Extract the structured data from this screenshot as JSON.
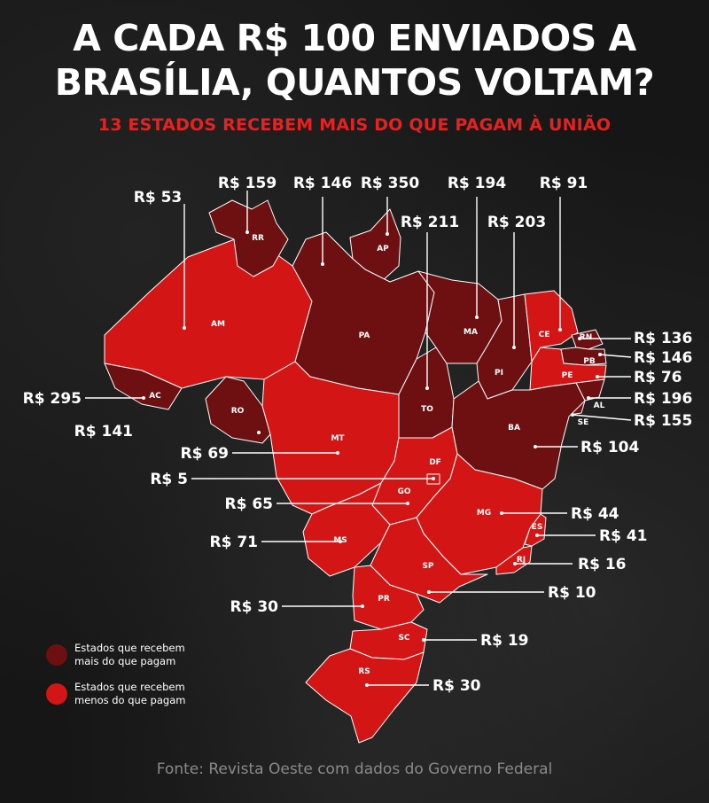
{
  "title_line1": "A CADA R$ 100 ENVIADOS A",
  "title_line2": "BRASÍLIA, QUANTOS VOLTAM?",
  "subtitle": "13 ESTADOS RECEBEM MAIS DO QUE PAGAM À UNIÃO",
  "colors": {
    "receive_more": "#6e0f12",
    "receive_less": "#d41515",
    "subtitle": "#e32222"
  },
  "legend": [
    {
      "key": "receive_more",
      "label_line1": "Estados que recebem",
      "label_line2": "mais do que pagam"
    },
    {
      "key": "receive_less",
      "label_line1": "Estados que recebem",
      "label_line2": "menos do que pagam"
    }
  ],
  "states": [
    {
      "code": "AM",
      "value": "R$ 53",
      "category": "receive_less"
    },
    {
      "code": "RR",
      "value": "R$ 159",
      "category": "receive_more"
    },
    {
      "code": "PA",
      "value": "R$ 146",
      "category": "receive_more"
    },
    {
      "code": "AP",
      "value": "R$ 350",
      "category": "receive_more"
    },
    {
      "code": "TO",
      "value": "R$ 211",
      "category": "receive_more"
    },
    {
      "code": "MA",
      "value": "R$ 194",
      "category": "receive_more"
    },
    {
      "code": "PI",
      "value": "R$ 203",
      "category": "receive_more"
    },
    {
      "code": "CE",
      "value": "R$ 91",
      "category": "receive_less"
    },
    {
      "code": "RN",
      "value": "R$ 136",
      "category": "receive_more"
    },
    {
      "code": "PB",
      "value": "R$ 146",
      "category": "receive_more"
    },
    {
      "code": "PE",
      "value": "R$ 76",
      "category": "receive_less"
    },
    {
      "code": "AL",
      "value": "R$ 196",
      "category": "receive_more"
    },
    {
      "code": "SE",
      "value": "R$ 155",
      "category": "receive_more"
    },
    {
      "code": "BA",
      "value": "R$ 104",
      "category": "receive_more"
    },
    {
      "code": "AC",
      "value": "R$ 295",
      "category": "receive_more"
    },
    {
      "code": "RO",
      "value": "R$ 141",
      "category": "receive_more"
    },
    {
      "code": "MT",
      "value": "R$ 69",
      "category": "receive_less"
    },
    {
      "code": "DF",
      "value": "R$ 5",
      "category": "receive_less"
    },
    {
      "code": "GO",
      "value": "R$ 65",
      "category": "receive_less"
    },
    {
      "code": "MS",
      "value": "R$ 71",
      "category": "receive_less"
    },
    {
      "code": "MG",
      "value": "R$ 44",
      "category": "receive_less"
    },
    {
      "code": "ES",
      "value": "R$ 41",
      "category": "receive_less"
    },
    {
      "code": "RJ",
      "value": "R$ 16",
      "category": "receive_less"
    },
    {
      "code": "SP",
      "value": "R$ 10",
      "category": "receive_less"
    },
    {
      "code": "PR",
      "value": "R$ 30",
      "category": "receive_less"
    },
    {
      "code": "SC",
      "value": "R$ 19",
      "category": "receive_less"
    },
    {
      "code": "RS",
      "value": "R$ 30",
      "category": "receive_less"
    }
  ],
  "source": "Fonte: Revista Oeste com dados do Governo Federal"
}
